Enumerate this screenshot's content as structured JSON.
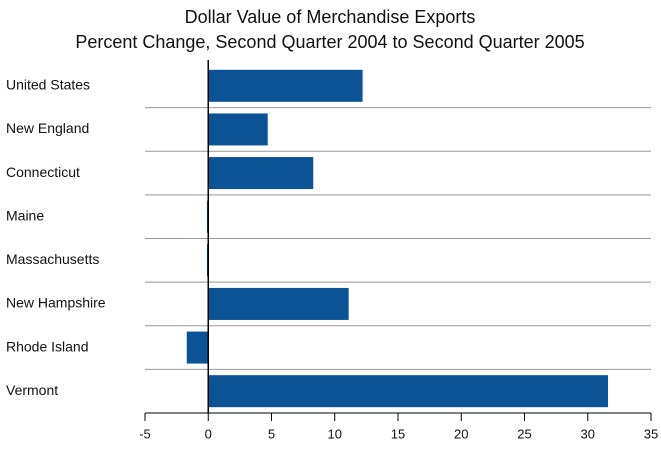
{
  "chart_data": {
    "type": "bar",
    "orientation": "horizontal",
    "title": "Dollar Value of Merchandise Exports",
    "subtitle": "Percent Change, Second Quarter 2004 to Second Quarter 2005",
    "categories": [
      "United States",
      "New England",
      "Connecticut",
      "Maine",
      "Massachusetts",
      "New Hampshire",
      "Rhode Island",
      "Vermont"
    ],
    "values": [
      12.2,
      4.7,
      8.3,
      -0.1,
      -0.1,
      11.1,
      -1.7,
      31.6
    ],
    "color": "#0b5394",
    "xlim": [
      -5,
      35
    ],
    "xticks": [
      -5,
      0,
      5,
      10,
      15,
      20,
      25,
      30,
      35
    ]
  }
}
